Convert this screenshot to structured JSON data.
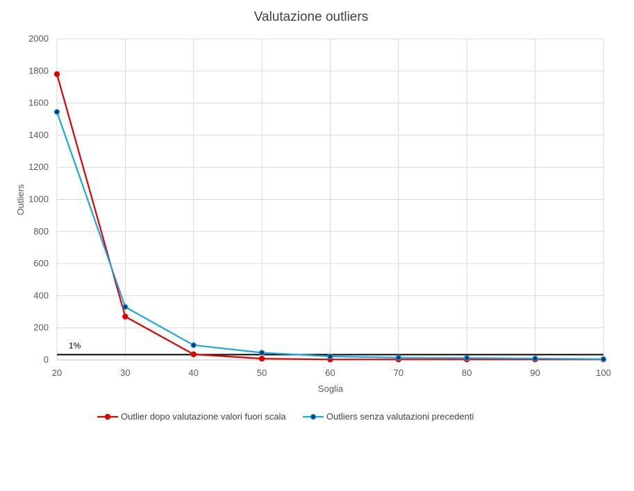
{
  "chart_data": {
    "type": "line",
    "title": "Valutazione outliers",
    "xlabel": "Soglia",
    "ylabel": "Outliers",
    "x": [
      20,
      30,
      40,
      50,
      60,
      70,
      80,
      90,
      100
    ],
    "xlim": [
      20,
      100
    ],
    "ylim": [
      0,
      2000
    ],
    "xticks": [
      20,
      30,
      40,
      50,
      60,
      70,
      80,
      90,
      100
    ],
    "yticks": [
      0,
      200,
      400,
      600,
      800,
      1000,
      1200,
      1400,
      1600,
      1800,
      2000
    ],
    "grid": true,
    "legend_position": "bottom",
    "series": [
      {
        "name": "Outlier dopo valutazione valori fuori scala",
        "color": "#e00000",
        "values": [
          1780,
          270,
          35,
          8,
          3,
          3,
          3,
          3,
          3
        ]
      },
      {
        "name": "Outliers senza valutazioni precedenti",
        "color": "#1aa7e0",
        "marker_color": "#0b3c6e",
        "values": [
          1545,
          330,
          92,
          45,
          22,
          14,
          12,
          9,
          5
        ]
      }
    ],
    "reference_line": {
      "label": "1%",
      "value": 33,
      "color": "#000000"
    }
  }
}
